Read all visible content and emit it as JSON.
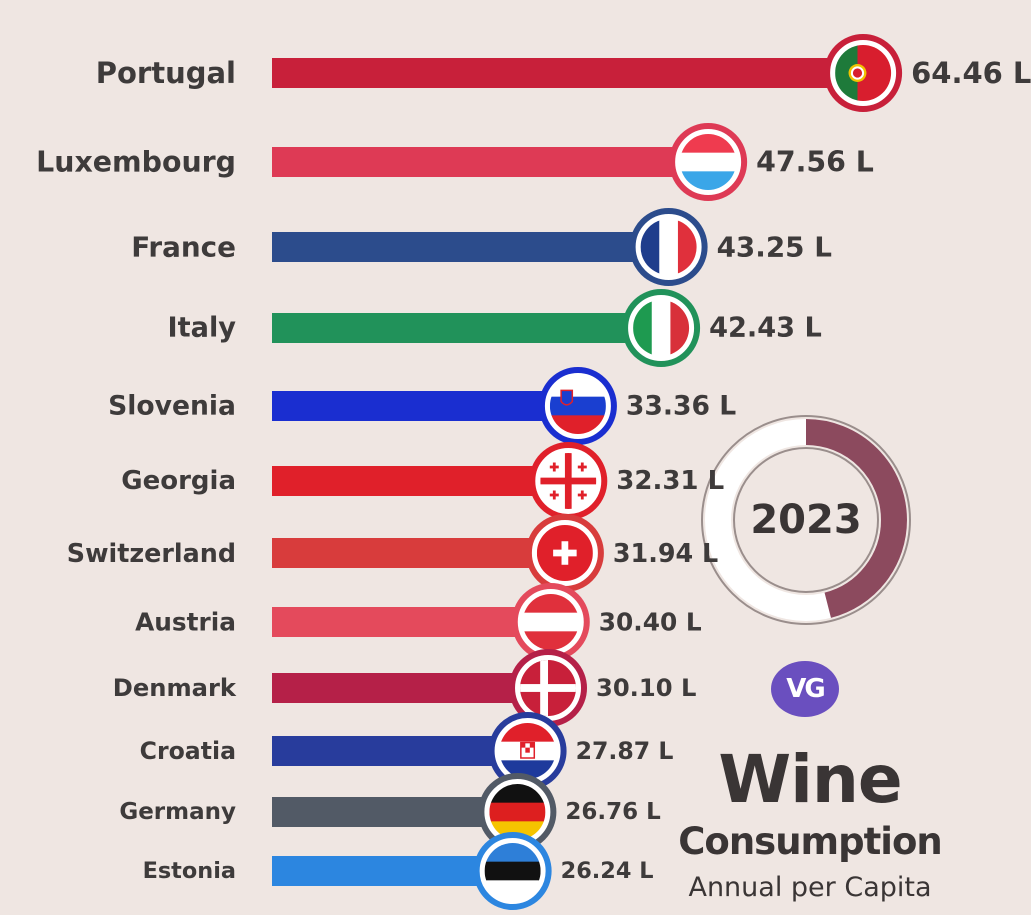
{
  "chart_data": {
    "type": "bar",
    "orientation": "horizontal",
    "unit": "L",
    "categories": [
      "Portugal",
      "Luxembourg",
      "France",
      "Italy",
      "Slovenia",
      "Georgia",
      "Switzerland",
      "Austria",
      "Denmark",
      "Croatia",
      "Germany",
      "Estonia"
    ],
    "values": [
      64.46,
      47.56,
      43.25,
      42.43,
      33.36,
      32.31,
      31.94,
      30.4,
      30.1,
      27.87,
      26.76,
      26.24
    ],
    "value_labels": [
      "64.46 L",
      "47.56 L",
      "43.25 L",
      "42.43 L",
      "33.36 L",
      "32.31 L",
      "31.94 L",
      "30.40 L",
      "30.10 L",
      "27.87 L",
      "26.76 L",
      "26.24 L"
    ],
    "bar_colors": [
      "#c8203a",
      "#de3a55",
      "#2c4c8c",
      "#21925a",
      "#1a2ed0",
      "#e0202a",
      "#d83c3c",
      "#e44a5c",
      "#b52048",
      "#283c9c",
      "#525a66",
      "#2c86e0"
    ],
    "flag_icons": [
      "portugal-flag-icon",
      "luxembourg-flag-icon",
      "france-flag-icon",
      "italy-flag-icon",
      "slovenia-flag-icon",
      "georgia-flag-icon",
      "switzerland-flag-icon",
      "austria-flag-icon",
      "denmark-flag-icon",
      "croatia-flag-icon",
      "germany-flag-icon",
      "estonia-flag-icon"
    ]
  },
  "year_badge": {
    "year": "2023",
    "progress": 0.46,
    "ring_color": "#8c4a5e",
    "track_color": "#ffffff"
  },
  "brand": {
    "logo_text": "VG",
    "logo_color": "#6a4fbf"
  },
  "title": {
    "main": "Wine",
    "sub": "Consumption",
    "sub2": "Annual per Capita"
  }
}
